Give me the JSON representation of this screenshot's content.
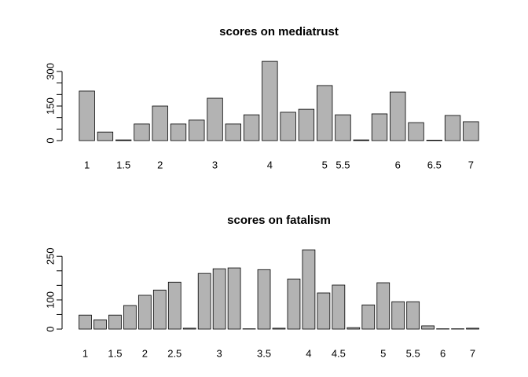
{
  "chart_data": [
    {
      "type": "bar",
      "title": "scores on mediatrust",
      "color": "#b3b3b3",
      "categories": [
        "1",
        null,
        "1.5",
        null,
        "2",
        null,
        null,
        "3",
        null,
        null,
        "4",
        null,
        null,
        "5",
        "5.5",
        null,
        null,
        "6",
        null,
        "6.5",
        null,
        "7"
      ],
      "values": [
        215,
        37,
        3,
        72,
        150,
        72,
        89,
        184,
        72,
        112,
        344,
        123,
        136,
        239,
        112,
        3,
        116,
        211,
        78,
        2,
        109,
        82
      ],
      "ylim": [
        0,
        358
      ],
      "yticks": [
        0,
        150,
        300
      ],
      "yminor_ticks": [
        50,
        100,
        200,
        250
      ]
    },
    {
      "type": "bar",
      "title": "scores on fatalism",
      "color": "#b3b3b3",
      "categories": [
        "1",
        null,
        "1.5",
        null,
        "2",
        null,
        "2.5",
        null,
        null,
        "3",
        null,
        null,
        "3.5",
        null,
        null,
        "4",
        null,
        "4.5",
        null,
        null,
        "5",
        null,
        "5.5",
        null,
        "6",
        null,
        "7"
      ],
      "values": [
        48,
        32,
        48,
        81,
        116,
        134,
        161,
        3,
        191,
        207,
        210,
        1,
        204,
        3,
        172,
        272,
        124,
        151,
        5,
        83,
        159,
        94,
        94,
        11,
        1,
        1,
        3
      ],
      "ylim": [
        0,
        283
      ],
      "yticks": [
        0,
        100,
        250
      ],
      "yminor_ticks": [
        50,
        150,
        200
      ]
    }
  ]
}
